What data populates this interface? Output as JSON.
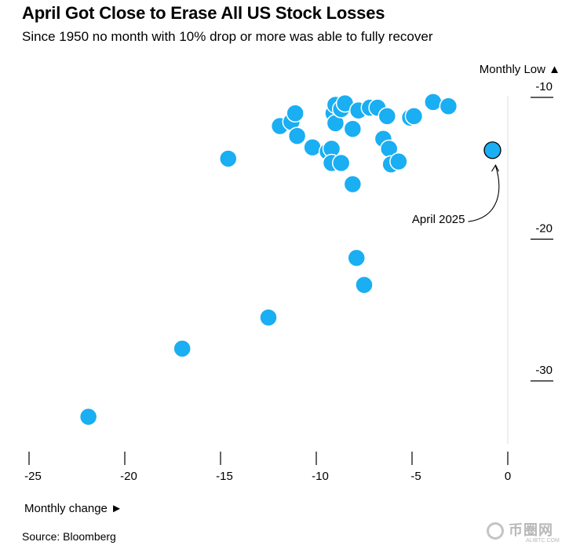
{
  "header": {
    "title": "April Got Close to Erase All US Stock Losses",
    "subtitle": "Since 1950 no month with 10% drop or more was able to fully recover"
  },
  "footer": {
    "source": "Source: Bloomberg",
    "watermark": "币圈网",
    "watermark_sub": "ALIBTC.COM"
  },
  "colors": {
    "point": "#1aaef2",
    "highlight_stroke": "#000000",
    "axis": "#000000",
    "guide": "#dddddd"
  },
  "chart_data": {
    "type": "scatter",
    "title": "April Got Close to Erase All US Stock Losses",
    "subtitle": "Since 1950 no month with 10% drop or more was able to fully recover",
    "xlabel": "Monthly change ►",
    "ylabel": "Monthly Low ▲",
    "xlim": [
      -25.5,
      0.2
    ],
    "ylim": [
      -34.5,
      -9.5
    ],
    "x_ticks": [
      -25,
      -20,
      -15,
      -10,
      -5,
      0
    ],
    "x_tick_labels": [
      "-25",
      "-20",
      "-15",
      "-10",
      "-5",
      "0"
    ],
    "y_ticks": [
      -10,
      -20,
      -30
    ],
    "y_tick_labels": [
      "-10",
      "-20",
      "-30"
    ],
    "grid": false,
    "points": [
      {
        "x": -21.9,
        "y": -33.3
      },
      {
        "x": -17.0,
        "y": -28.5
      },
      {
        "x": -12.5,
        "y": -26.3
      },
      {
        "x": -7.5,
        "y": -24.0
      },
      {
        "x": -7.9,
        "y": -22.1
      },
      {
        "x": -14.6,
        "y": -15.1
      },
      {
        "x": -8.1,
        "y": -16.9
      },
      {
        "x": -11.9,
        "y": -12.8
      },
      {
        "x": -11.3,
        "y": -12.5
      },
      {
        "x": -11.1,
        "y": -11.9
      },
      {
        "x": -11.0,
        "y": -13.5
      },
      {
        "x": -10.2,
        "y": -14.3
      },
      {
        "x": -9.4,
        "y": -14.6
      },
      {
        "x": -9.2,
        "y": -14.4
      },
      {
        "x": -9.2,
        "y": -15.4
      },
      {
        "x": -8.7,
        "y": -15.4
      },
      {
        "x": -9.1,
        "y": -11.9
      },
      {
        "x": -9.0,
        "y": -12.6
      },
      {
        "x": -9.0,
        "y": -11.3
      },
      {
        "x": -8.7,
        "y": -11.6
      },
      {
        "x": -8.5,
        "y": -11.2
      },
      {
        "x": -8.1,
        "y": -13.0
      },
      {
        "x": -7.8,
        "y": -11.7
      },
      {
        "x": -7.2,
        "y": -11.5
      },
      {
        "x": -6.8,
        "y": -11.5
      },
      {
        "x": -6.3,
        "y": -12.1
      },
      {
        "x": -6.5,
        "y": -13.7
      },
      {
        "x": -6.2,
        "y": -14.4
      },
      {
        "x": -6.1,
        "y": -15.5
      },
      {
        "x": -5.7,
        "y": -15.3
      },
      {
        "x": -5.1,
        "y": -12.2
      },
      {
        "x": -4.9,
        "y": -12.1
      },
      {
        "x": -3.9,
        "y": -11.1
      },
      {
        "x": -3.1,
        "y": -11.4
      },
      {
        "x": -0.8,
        "y": -14.5,
        "label": "April 2025",
        "highlight": true
      }
    ],
    "annotations": [
      {
        "text": "April 2025",
        "x": -0.8,
        "y": -14.5
      }
    ]
  }
}
